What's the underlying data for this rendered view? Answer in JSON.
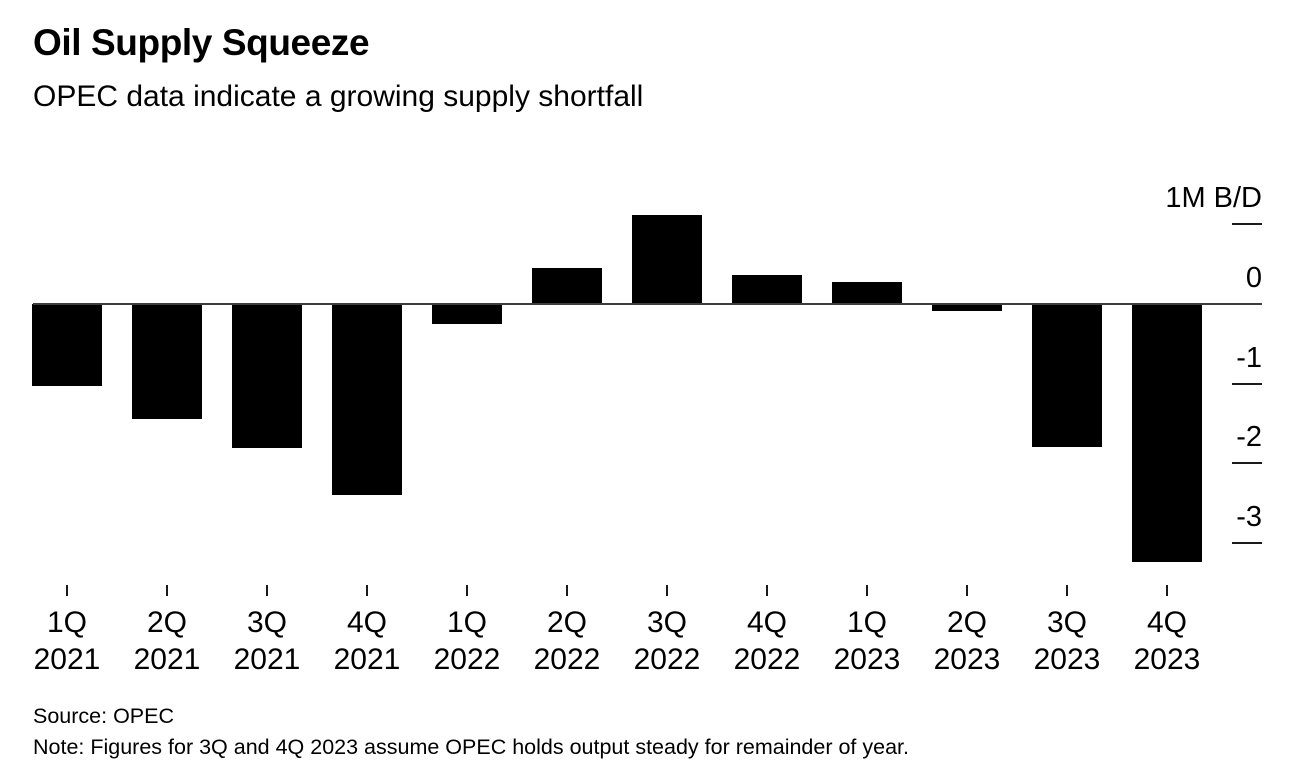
{
  "page": {
    "background_color": "#ffffff",
    "text_color": "#000000"
  },
  "header": {
    "title": "Oil Supply Squeeze",
    "subtitle": "OPEC data indicate a growing supply shortfall"
  },
  "footer": {
    "source": "Source: OPEC",
    "note": "Note: Figures for 3Q and 4Q 2023 assume OPEC holds output steady for remainder of year."
  },
  "chart_data": {
    "type": "bar",
    "title": "Oil Supply Squeeze",
    "subtitle": "OPEC data indicate a growing supply shortfall",
    "unit_label": "1M B/D",
    "bar_color": "#000000",
    "categories": [
      {
        "quarter": "1Q",
        "year": "2021"
      },
      {
        "quarter": "2Q",
        "year": "2021"
      },
      {
        "quarter": "3Q",
        "year": "2021"
      },
      {
        "quarter": "4Q",
        "year": "2021"
      },
      {
        "quarter": "1Q",
        "year": "2022"
      },
      {
        "quarter": "2Q",
        "year": "2022"
      },
      {
        "quarter": "3Q",
        "year": "2022"
      },
      {
        "quarter": "4Q",
        "year": "2022"
      },
      {
        "quarter": "1Q",
        "year": "2023"
      },
      {
        "quarter": "2Q",
        "year": "2023"
      },
      {
        "quarter": "3Q",
        "year": "2023"
      },
      {
        "quarter": "4Q",
        "year": "2023"
      }
    ],
    "values": [
      -1.03,
      -1.44,
      -1.81,
      -2.4,
      -0.25,
      0.45,
      1.12,
      0.36,
      0.28,
      -0.09,
      -1.79,
      -3.24
    ],
    "ylabel": "1M B/D",
    "xlabel": "",
    "ylim": [
      -3.5,
      1.25
    ],
    "y_axis_ticks": [
      {
        "value": 1,
        "label": "1M B/D"
      },
      {
        "value": 0,
        "label": "0"
      },
      {
        "value": -1,
        "label": "-1"
      },
      {
        "value": -2,
        "label": "-2"
      },
      {
        "value": -3,
        "label": "-3"
      }
    ],
    "grid": false,
    "legend": false,
    "source": "Source: OPEC",
    "note": "Note: Figures for 3Q and 4Q 2023 assume OPEC holds output steady for remainder of year."
  }
}
